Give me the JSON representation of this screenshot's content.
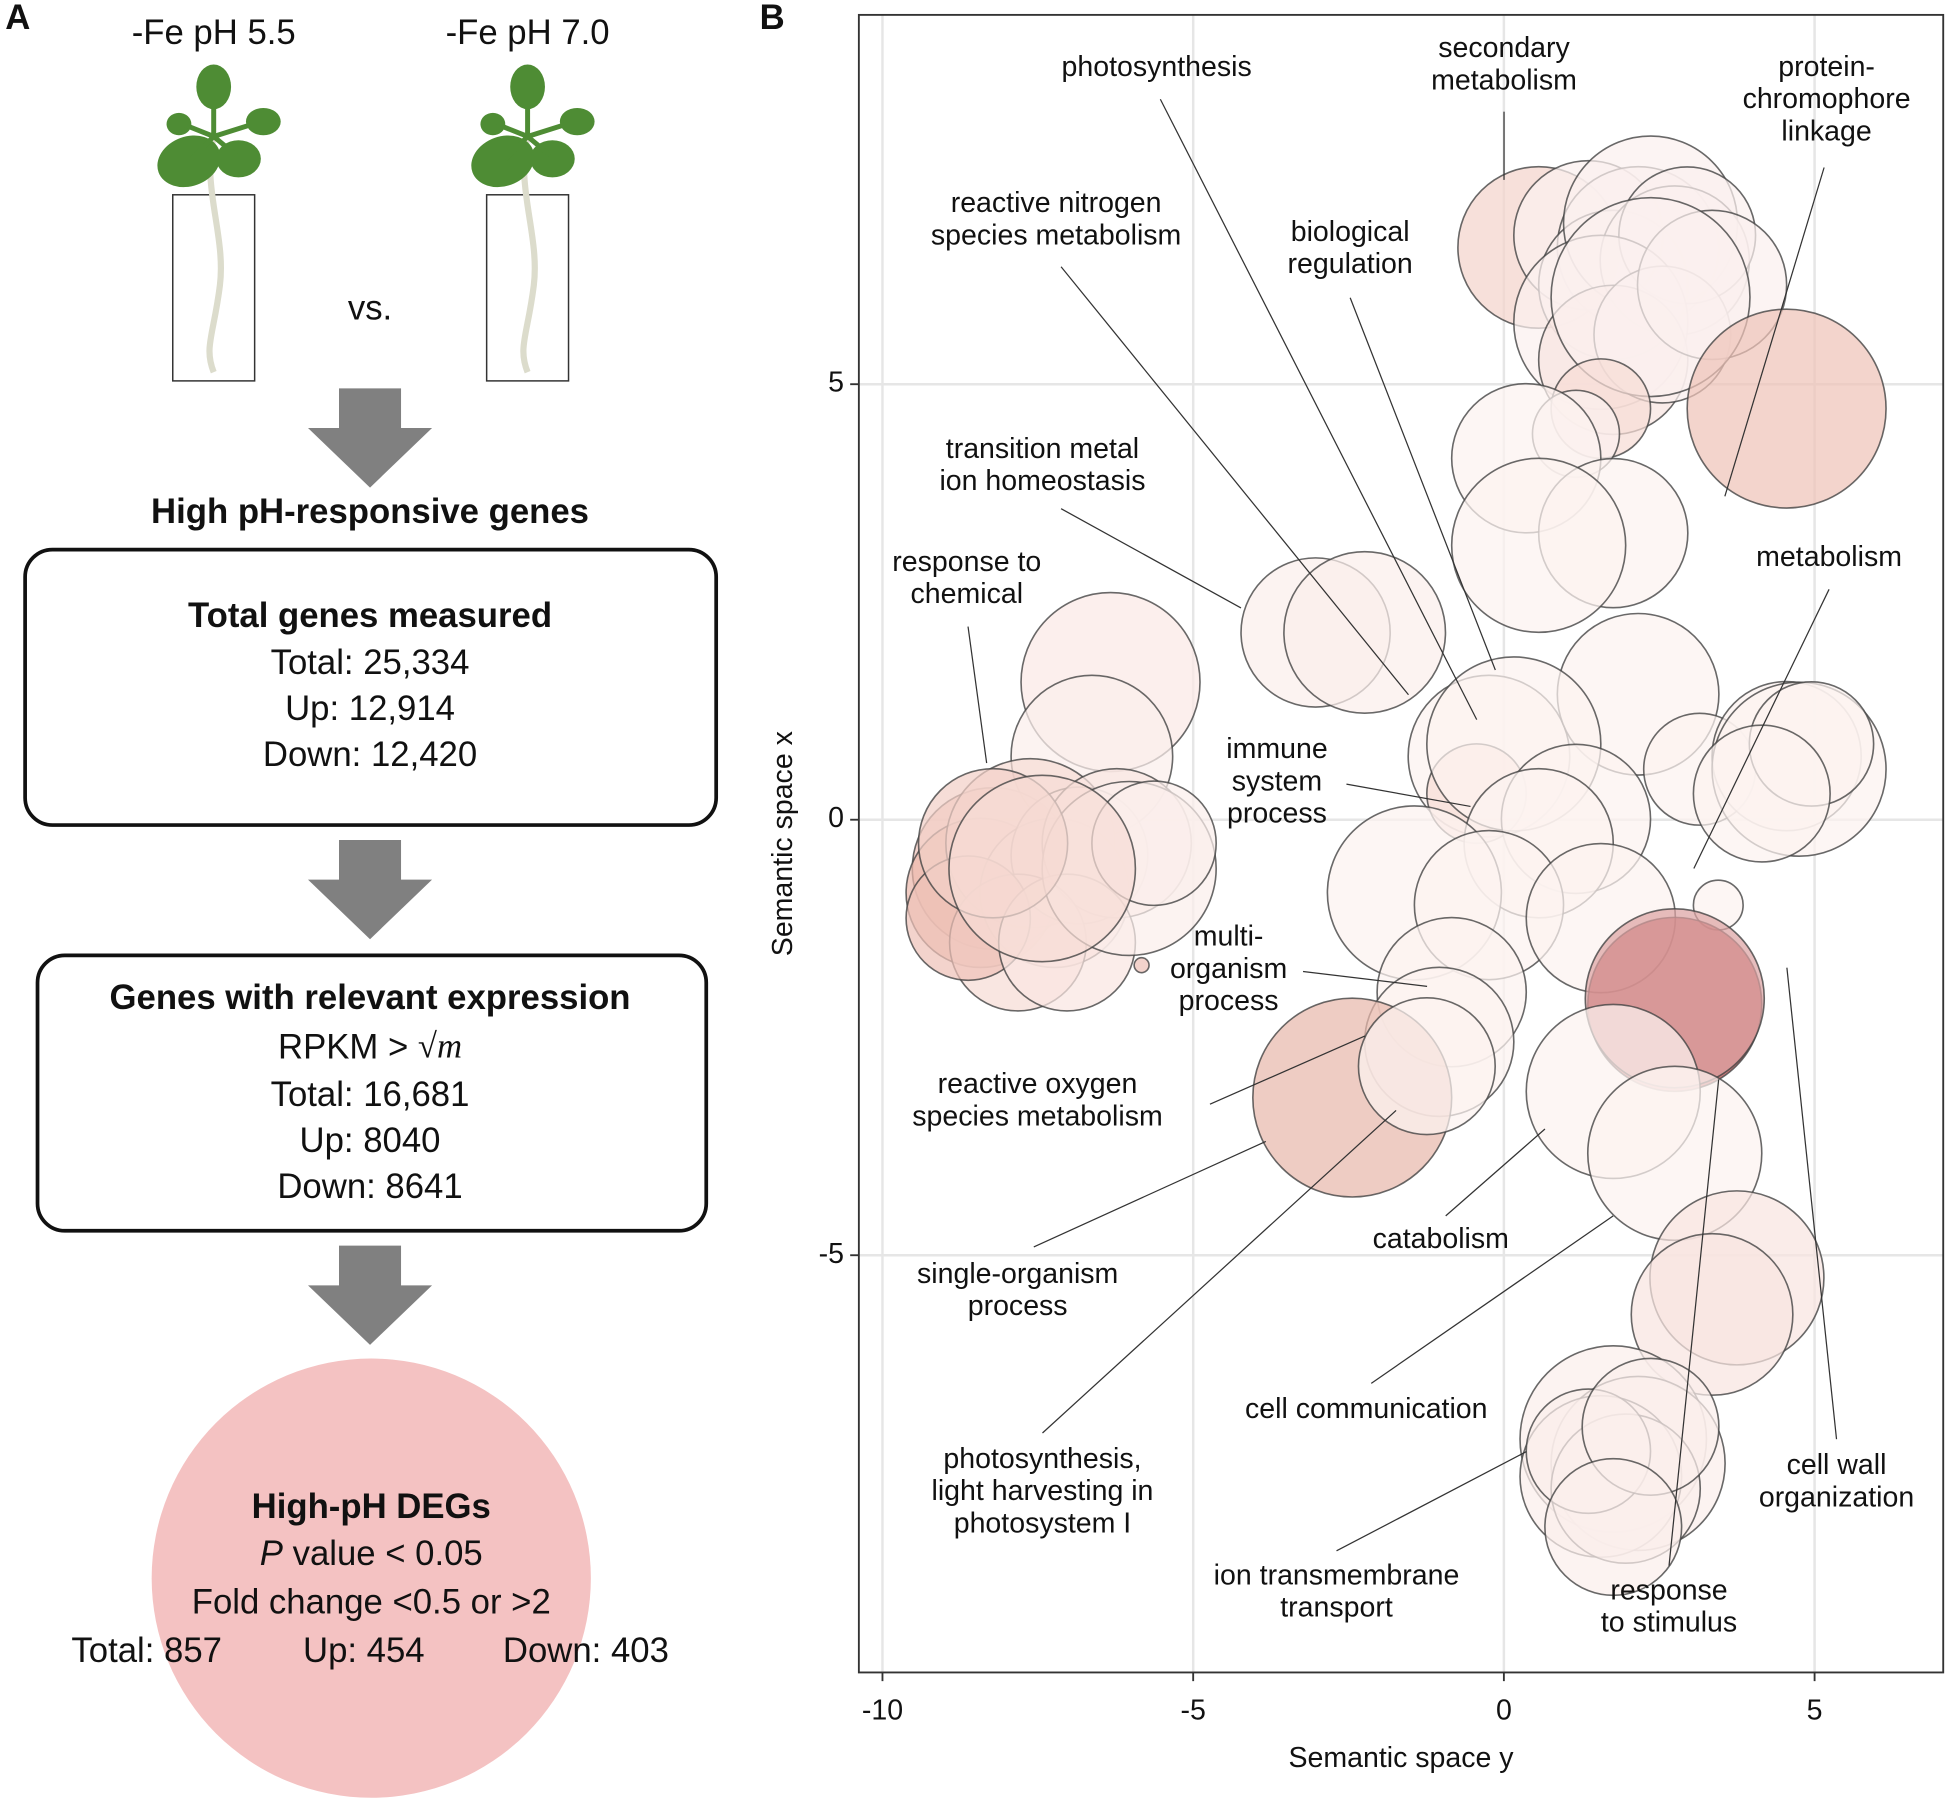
{
  "panel_a": {
    "label": "A",
    "conditions": [
      "-Fe pH 5.5",
      "-Fe pH 7.0"
    ],
    "versus": "vs.",
    "heading": "High pH-responsive genes",
    "box1": {
      "title": "Total genes measured",
      "lines": [
        "Total: 25,334",
        "Up: 12,914",
        "Down: 12,420"
      ]
    },
    "box2": {
      "title": "Genes with relevant expression",
      "rpkm": "RPKM > ",
      "sqrt": "√m",
      "lines": [
        "Total: 16,681",
        "Up: 8040",
        "Down: 8641"
      ]
    },
    "circle": {
      "title": "High-pH DEGs",
      "p": "P",
      "p_rest": " value < 0.05",
      "fold": "Fold change <0.5 or >2",
      "counts": [
        "Total: 857",
        "Up: 454",
        "Down: 403"
      ]
    }
  },
  "chart_data": {
    "type": "scatter",
    "panel_label": "B",
    "x_label": "Semantic space y",
    "y_label": "Semantic space x",
    "xlim": [
      -10.38,
      7.07
    ],
    "ylim": [
      -9.79,
      9.24
    ],
    "xticks": [
      -10,
      -5,
      0,
      5
    ],
    "yticks": [
      -5,
      0,
      5
    ],
    "grid": true,
    "x": [
      -6.33,
      -6.63,
      -8.22,
      -8.42,
      -7.62,
      -7.23,
      -6.83,
      -6.23,
      -7.82,
      -8.62,
      -7.03,
      -6.03,
      -5.63,
      -8.22,
      -7.43,
      -5.83,
      -3.03,
      -2.24,
      0.56,
      1.36,
      2.16,
      1.76,
      2.36,
      2.75,
      2.95,
      1.56,
      1.76,
      2.55,
      3.35,
      2.36,
      1.56,
      1.16,
      4.55,
      0.36,
      1.76,
      0.56,
      -0.24,
      2.16,
      -0.44,
      0.16,
      1.16,
      0.56,
      -1.44,
      -0.24,
      1.56,
      3.15,
      4.55,
      4.75,
      4.95,
      4.15,
      -0.84,
      -1.04,
      3.45,
      2.75,
      2.75,
      -2.44,
      -1.24,
      1.76,
      2.75,
      3.75,
      3.35,
      1.76,
      2.16,
      1.56,
      1.96,
      1.36,
      2.36,
      1.76
    ],
    "y": [
      1.58,
      0.73,
      -0.56,
      -0.84,
      -0.27,
      -0.84,
      -0.41,
      -0.27,
      -1.41,
      -1.13,
      -1.41,
      -0.56,
      -0.27,
      -0.27,
      -0.56,
      -1.67,
      2.15,
      2.15,
      6.57,
      6.71,
      6.57,
      6.14,
      6.85,
      6.42,
      6.71,
      5.71,
      5.28,
      5.57,
      6.14,
      6.0,
      4.72,
      4.43,
      4.72,
      4.15,
      3.29,
      3.15,
      0.73,
      1.44,
      0.3,
      0.87,
      0.01,
      -0.27,
      -0.84,
      -0.98,
      -1.13,
      0.58,
      0.73,
      0.58,
      0.87,
      0.3,
      -1.98,
      -2.55,
      -0.98,
      -2.12,
      -2.05,
      -3.19,
      -2.83,
      -3.12,
      -3.83,
      -5.26,
      -5.68,
      -7.11,
      -7.39,
      -7.54,
      -7.68,
      -7.25,
      -6.97,
      -8.12
    ],
    "size": [
      1.44,
      1.3,
      1.3,
      1.2,
      1.36,
      1.2,
      1.1,
      1.2,
      1.1,
      1.0,
      1.1,
      1.4,
      1.0,
      1.2,
      1.5,
      0.12,
      1.2,
      1.3,
      1.3,
      1.2,
      1.3,
      1.2,
      1.4,
      1.2,
      1.1,
      1.4,
      1.2,
      1.1,
      1.2,
      1.6,
      0.8,
      0.7,
      1.6,
      1.2,
      1.2,
      1.4,
      1.3,
      1.3,
      0.8,
      1.4,
      1.2,
      1.2,
      1.4,
      1.2,
      1.2,
      0.9,
      1.2,
      1.4,
      1.0,
      1.1,
      1.2,
      1.2,
      0.4,
      1.4,
      1.44,
      1.6,
      1.1,
      1.4,
      1.4,
      1.4,
      1.3,
      1.5,
      1.4,
      1.3,
      1.2,
      1.0,
      1.1,
      1.1
    ],
    "color": [
      "#fbe9e6",
      "#fbeeeb",
      "#efc2b8",
      "#ecb8ac",
      "#f6dcd6",
      "#f6dcd6",
      "#f9e6e2",
      "#f9e6e2",
      "#f6dcd6",
      "#efc2b8",
      "#f9e6e2",
      "#fbeeeb",
      "#fbeeeb",
      "#f3d0c8",
      "#f6dcd6",
      "#efc2b8",
      "#fbeeeb",
      "#fbeeeb",
      "#f4d4cc",
      "#fbf0ee",
      "#fbf0ee",
      "#fbf0ee",
      "#fbf0ee",
      "#fbf0ee",
      "#fbf0ee",
      "#fbf0ee",
      "#f8e4e0",
      "#fbf0ee",
      "#fbf0ee",
      "#fbf0ee",
      "#f6dcd6",
      "#fbf0ee",
      "#eec4b8",
      "#fcf2f0",
      "#fcf2f0",
      "#fcf2f0",
      "#fcf2f0",
      "#fcf2f0",
      "#f6dcd6",
      "#fcf2f0",
      "#fcf2f0",
      "#fcf2f0",
      "#fcf2f0",
      "#fcf2f0",
      "#fcf2f0",
      "#fcf2f0",
      "#fcf2f0",
      "#fcf2f0",
      "#fcf2f0",
      "#fcf2f0",
      "#fcf2f0",
      "#fcf2f0",
      "#fcf2f0",
      "#b84a4a",
      "#dca4a4",
      "#e8b8ac",
      "#fcf2f0",
      "#fcf2f0",
      "#fcf2f0",
      "#f8e4e0",
      "#f8e4e0",
      "#fbeeeb",
      "#fbeeeb",
      "#fbeeeb",
      "#fbeeeb",
      "#fbeeeb",
      "#fbeeeb",
      "#fbeeeb"
    ],
    "annotations": [
      {
        "lines": [
          "photosynthesis"
        ]
      },
      {
        "lines": [
          "secondary",
          "metabolism"
        ]
      },
      {
        "lines": [
          "protein-",
          "chromophore",
          "linkage"
        ]
      },
      {
        "lines": [
          "reactive nitrogen",
          "species metabolism"
        ]
      },
      {
        "lines": [
          "biological",
          "regulation"
        ]
      },
      {
        "lines": [
          "transition metal",
          "ion homeostasis"
        ]
      },
      {
        "lines": [
          "response to",
          "chemical"
        ]
      },
      {
        "lines": [
          "metabolism"
        ]
      },
      {
        "lines": [
          "immune",
          "system",
          "process"
        ]
      },
      {
        "lines": [
          "multi-",
          "organism",
          "process"
        ]
      },
      {
        "lines": [
          "reactive oxygen",
          "species metabolism"
        ]
      },
      {
        "lines": [
          "single-organism",
          "process"
        ]
      },
      {
        "lines": [
          "catabolism"
        ]
      },
      {
        "lines": [
          "cell communication"
        ]
      },
      {
        "lines": [
          "photosynthesis,",
          "light harvesting in",
          "photosystem I"
        ]
      },
      {
        "lines": [
          "ion transmembrane",
          "transport"
        ]
      },
      {
        "lines": [
          "response",
          "to stimulus"
        ]
      },
      {
        "lines": [
          "cell wall",
          "organization"
        ]
      }
    ]
  }
}
